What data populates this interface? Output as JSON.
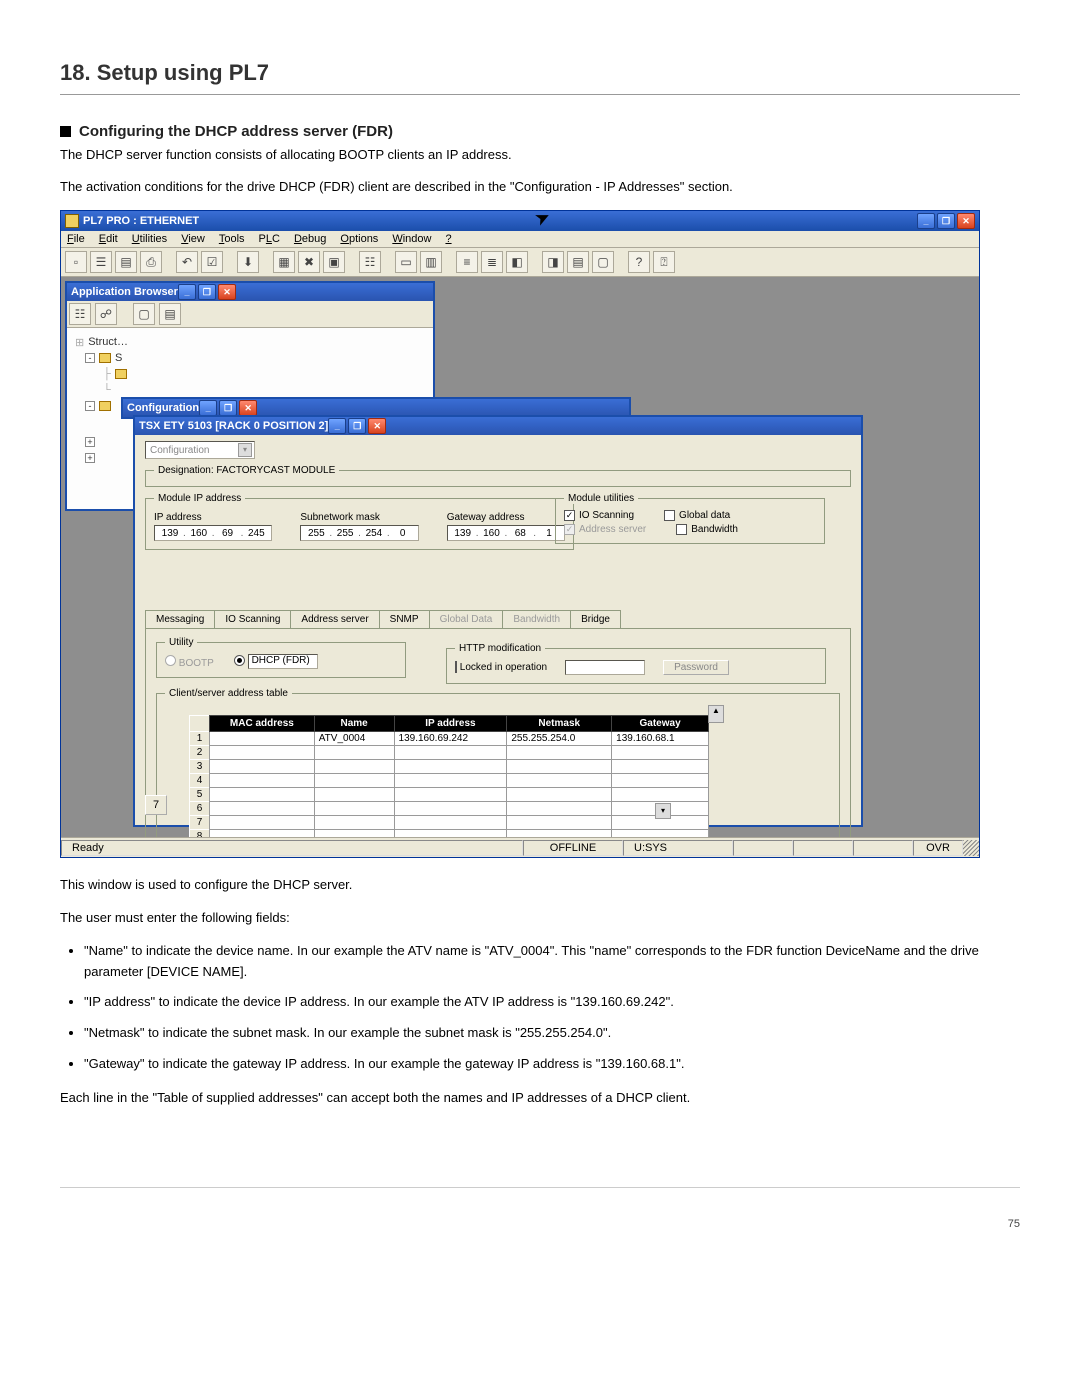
{
  "chapter_title": "18. Setup using PL7",
  "section_title": "Configuring the DHCP address server (FDR)",
  "intro_p1": "The DHCP server function consists of allocating BOOTP clients an IP address.",
  "intro_p2": "The activation conditions for the drive DHCP (FDR) client are described in the \"Configuration - IP Addresses\" section.",
  "below_p1": "This window is used to configure the DHCP server.",
  "below_p2": "The user must enter the following fields:",
  "bullets": [
    "\"Name\" to indicate the device name. In our example the ATV name is \"ATV_0004\". This \"name\" corresponds to the FDR function DeviceName and the drive parameter [DEVICE NAME].",
    "\"IP address\" to indicate the device IP address. In our example the ATV IP address is \"139.160.69.242\".",
    "\"Netmask\" to indicate the subnet mask. In our example the subnet mask is \"255.255.254.0\".",
    "\"Gateway\" to indicate the gateway IP address. In our example the gateway IP address is \"139.160.68.1\"."
  ],
  "closing_p": "Each line in the \"Table of supplied addresses\" can accept both the names and IP addresses of a DHCP client.",
  "page_number": "75",
  "app": {
    "title": "PL7 PRO : ETHERNET",
    "menu": [
      "File",
      "Edit",
      "Utilities",
      "View",
      "Tools",
      "PLC",
      "Debug",
      "Options",
      "Window",
      "?"
    ],
    "browser_title": "Application Browser",
    "tree_root": "Struct…",
    "config_title": "Configuration",
    "ety_title": "TSX ETY 5103 [RACK 0     POSITION 2]",
    "dropdown_value": "Configuration",
    "designation_label": "Designation: FACTORYCAST MODULE",
    "module_ip": {
      "legend": "Module IP address",
      "ip_label": "IP address",
      "mask_label": "Subnetwork mask",
      "gw_label": "Gateway address",
      "ip": [
        "139",
        "160",
        "69",
        "245"
      ],
      "mask": [
        "255",
        "255",
        "254",
        "0"
      ],
      "gw": [
        "139",
        "160",
        "68",
        "1"
      ]
    },
    "module_utils": {
      "legend": "Module utilities",
      "io_scanning": "IO Scanning",
      "global_data": "Global data",
      "address_server": "Address server",
      "bandwidth": "Bandwidth"
    },
    "tabs": [
      "Messaging",
      "IO Scanning",
      "Address server",
      "SNMP",
      "Global Data",
      "Bandwidth",
      "Bridge"
    ],
    "utility": {
      "legend": "Utility",
      "bootp": "BOOTP",
      "dhcp": "DHCP (FDR)"
    },
    "http": {
      "legend": "HTTP modification",
      "locked": "Locked in operation",
      "password": "Password"
    },
    "table": {
      "legend": "Client/server address table",
      "headers": [
        "MAC address",
        "Name",
        "IP address",
        "Netmask",
        "Gateway"
      ],
      "rows_count": 9,
      "row1": {
        "name": "ATV_0004",
        "ip": "139.160.69.242",
        "mask": "255.255.254.0",
        "gw": "139.160.68.1"
      }
    },
    "page_tab": "7",
    "status": {
      "ready": "Ready",
      "offline": "OFFLINE",
      "usys": "U:SYS",
      "ovr": "OVR"
    }
  }
}
